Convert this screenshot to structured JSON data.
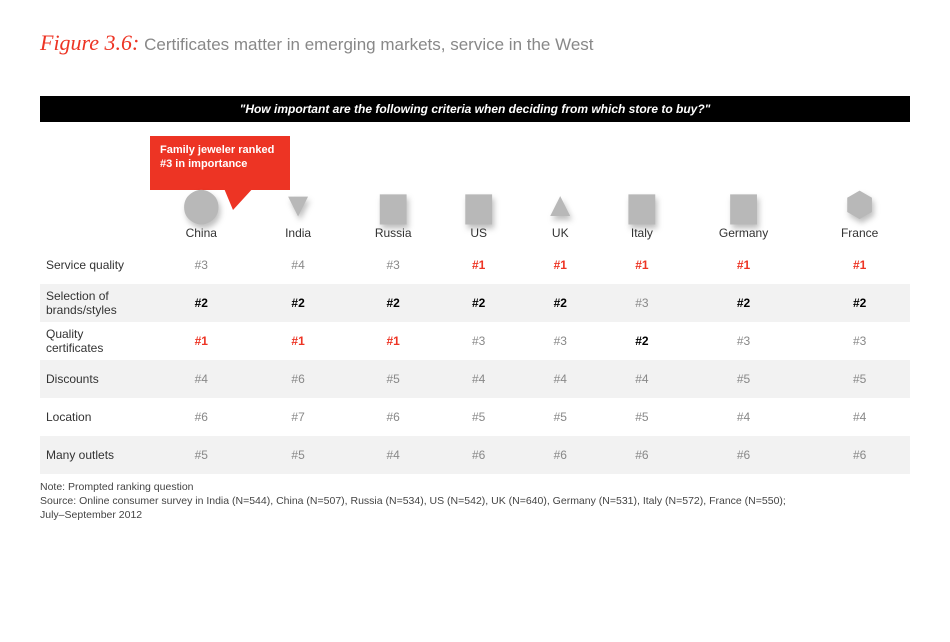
{
  "header": {
    "figure_label": "Figure 3.6:",
    "figure_title": "Certificates matter in emerging markets, service in the West"
  },
  "question_bar": "\"How important are the following criteria when deciding from which store to buy?\"",
  "callout_text": "Family jeweler ranked #3 in importance",
  "colors": {
    "accent_red": "#ed3424",
    "bar_bg": "#000000",
    "shaded_row": "#f2f2f2",
    "muted_text": "#888888"
  },
  "table": {
    "countries": [
      {
        "name": "China",
        "glyph": "⬤"
      },
      {
        "name": "India",
        "glyph": "▼"
      },
      {
        "name": "Russia",
        "glyph": "▆"
      },
      {
        "name": "US",
        "glyph": "▆"
      },
      {
        "name": "UK",
        "glyph": "▲"
      },
      {
        "name": "Italy",
        "glyph": "▆"
      },
      {
        "name": "Germany",
        "glyph": "▆"
      },
      {
        "name": "France",
        "glyph": "⬢"
      }
    ],
    "rows": [
      {
        "label": "Service quality",
        "shaded": false,
        "cells": [
          {
            "v": "#3",
            "style": "plain"
          },
          {
            "v": "#4",
            "style": "plain"
          },
          {
            "v": "#3",
            "style": "plain"
          },
          {
            "v": "#1",
            "style": "red"
          },
          {
            "v": "#1",
            "style": "red"
          },
          {
            "v": "#1",
            "style": "red"
          },
          {
            "v": "#1",
            "style": "red"
          },
          {
            "v": "#1",
            "style": "red"
          }
        ]
      },
      {
        "label": "Selection of brands/styles",
        "shaded": true,
        "cells": [
          {
            "v": "#2",
            "style": "bold"
          },
          {
            "v": "#2",
            "style": "bold"
          },
          {
            "v": "#2",
            "style": "bold"
          },
          {
            "v": "#2",
            "style": "bold"
          },
          {
            "v": "#2",
            "style": "bold"
          },
          {
            "v": "#3",
            "style": "plain"
          },
          {
            "v": "#2",
            "style": "bold"
          },
          {
            "v": "#2",
            "style": "bold"
          }
        ]
      },
      {
        "label": "Quality certificates",
        "shaded": false,
        "cells": [
          {
            "v": "#1",
            "style": "red"
          },
          {
            "v": "#1",
            "style": "red"
          },
          {
            "v": "#1",
            "style": "red"
          },
          {
            "v": "#3",
            "style": "plain"
          },
          {
            "v": "#3",
            "style": "plain"
          },
          {
            "v": "#2",
            "style": "bold"
          },
          {
            "v": "#3",
            "style": "plain"
          },
          {
            "v": "#3",
            "style": "plain"
          }
        ]
      },
      {
        "label": "Discounts",
        "shaded": true,
        "cells": [
          {
            "v": "#4",
            "style": "plain"
          },
          {
            "v": "#6",
            "style": "plain"
          },
          {
            "v": "#5",
            "style": "plain"
          },
          {
            "v": "#4",
            "style": "plain"
          },
          {
            "v": "#4",
            "style": "plain"
          },
          {
            "v": "#4",
            "style": "plain"
          },
          {
            "v": "#5",
            "style": "plain"
          },
          {
            "v": "#5",
            "style": "plain"
          }
        ]
      },
      {
        "label": "Location",
        "shaded": false,
        "cells": [
          {
            "v": "#6",
            "style": "plain"
          },
          {
            "v": "#7",
            "style": "plain"
          },
          {
            "v": "#6",
            "style": "plain"
          },
          {
            "v": "#5",
            "style": "plain"
          },
          {
            "v": "#5",
            "style": "plain"
          },
          {
            "v": "#5",
            "style": "plain"
          },
          {
            "v": "#4",
            "style": "plain"
          },
          {
            "v": "#4",
            "style": "plain"
          }
        ]
      },
      {
        "label": "Many outlets",
        "shaded": true,
        "cells": [
          {
            "v": "#5",
            "style": "plain"
          },
          {
            "v": "#5",
            "style": "plain"
          },
          {
            "v": "#4",
            "style": "plain"
          },
          {
            "v": "#6",
            "style": "plain"
          },
          {
            "v": "#6",
            "style": "plain"
          },
          {
            "v": "#6",
            "style": "plain"
          },
          {
            "v": "#6",
            "style": "plain"
          },
          {
            "v": "#6",
            "style": "plain"
          }
        ]
      }
    ]
  },
  "note_lines": [
    "Note: Prompted ranking question",
    "Source: Online consumer survey in India (N=544), China (N=507), Russia (N=534), US (N=542), UK (N=640), Germany (N=531), Italy (N=572), France (N=550);",
    "July–September 2012"
  ]
}
